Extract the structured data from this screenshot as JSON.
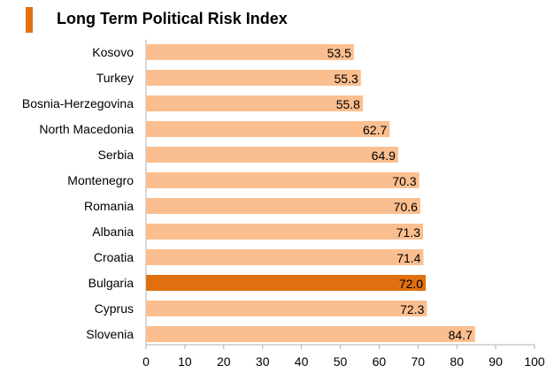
{
  "title": "Long Term Political Risk Index",
  "colors": {
    "bar": "#fbbf8f",
    "highlight": "#e0700f",
    "accent": "#e07010",
    "axis": "#b0b0b0"
  },
  "chart_data": {
    "type": "bar",
    "orientation": "horizontal",
    "title": "Long Term Political Risk Index",
    "categories": [
      "Kosovo",
      "Turkey",
      "Bosnia-Herzegovina",
      "North Macedonia",
      "Serbia",
      "Montenegro",
      "Romania",
      "Albania",
      "Croatia",
      "Bulgaria",
      "Cyprus",
      "Slovenia"
    ],
    "values": [
      53.5,
      55.3,
      55.8,
      62.7,
      64.9,
      70.3,
      70.6,
      71.3,
      71.4,
      72.0,
      72.3,
      84.7
    ],
    "value_labels": [
      "53.5",
      "55.3",
      "55.8",
      "62.7",
      "64.9",
      "70.3",
      "70.6",
      "71.3",
      "71.4",
      "72.0",
      "72.3",
      "84.7"
    ],
    "highlight": "Bulgaria",
    "xlim": [
      0,
      100
    ],
    "xticks": [
      "0",
      "10",
      "20",
      "30",
      "40",
      "50",
      "60",
      "70",
      "80",
      "90",
      "100"
    ],
    "grid": false,
    "legend": false
  }
}
